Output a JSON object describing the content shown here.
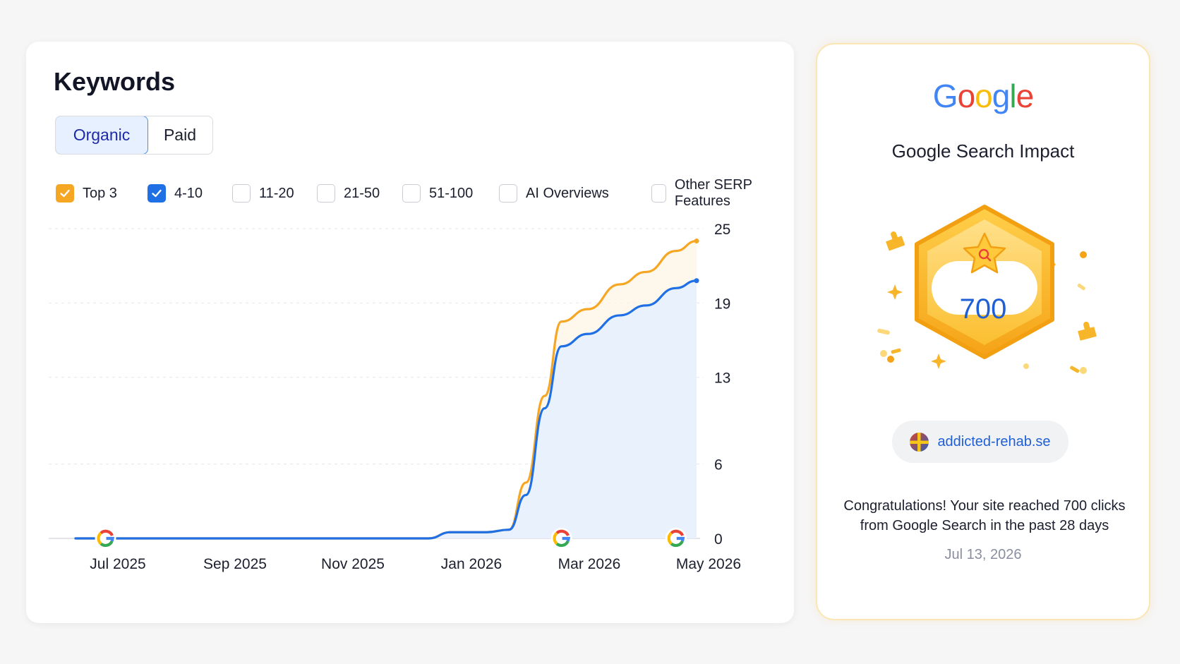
{
  "keywords": {
    "title": "Keywords",
    "tabs": [
      {
        "label": "Organic",
        "active": true
      },
      {
        "label": "Paid",
        "active": false
      }
    ],
    "filters": [
      {
        "label": "Top 3",
        "checked": true,
        "color": "#f5a623"
      },
      {
        "label": "4-10",
        "checked": true,
        "color": "#1f6fe5"
      },
      {
        "label": "11-20",
        "checked": false
      },
      {
        "label": "21-50",
        "checked": false
      },
      {
        "label": "51-100",
        "checked": false
      },
      {
        "label": "AI Overviews",
        "checked": false
      },
      {
        "label": "Other SERP Features",
        "checked": false
      }
    ]
  },
  "chart_data": {
    "type": "area",
    "title": "",
    "xlabel": "",
    "ylabel": "",
    "x_tick_labels": [
      "Jul 2025",
      "Sep 2025",
      "Nov 2025",
      "Jan 2026",
      "Mar 2026",
      "May 2026"
    ],
    "y_tick_labels": [
      "25",
      "19",
      "13",
      "6",
      "0"
    ],
    "y_ticks": [
      25,
      19,
      13,
      6,
      0
    ],
    "ylim": [
      0,
      25
    ],
    "y_axis_position": "right",
    "grid": "horizontal dashed",
    "x": [
      "2025-06-15",
      "2025-07-01",
      "2025-08-01",
      "2025-09-01",
      "2025-10-01",
      "2025-11-01",
      "2025-12-01",
      "2025-12-20",
      "2026-01-01",
      "2026-01-20",
      "2026-02-01",
      "2026-02-10",
      "2026-02-20",
      "2026-03-01",
      "2026-03-15",
      "2026-04-01",
      "2026-04-15",
      "2026-05-01",
      "2026-05-12"
    ],
    "series": [
      {
        "name": "Top 3",
        "color": "#f5a623",
        "values": [
          0,
          0,
          0,
          0,
          0,
          0,
          0,
          0,
          0.5,
          0.5,
          0.7,
          4.5,
          11.5,
          17.5,
          18.5,
          20.5,
          21.5,
          23.2,
          24.0
        ]
      },
      {
        "name": "4-10",
        "color": "#1f6fe5",
        "values": [
          0,
          0,
          0,
          0,
          0,
          0,
          0,
          0,
          0.5,
          0.5,
          0.7,
          3.5,
          10.5,
          15.5,
          16.5,
          18.0,
          18.8,
          20.2,
          20.8
        ]
      }
    ],
    "area_fill_series": "4-10",
    "annotation_markers": [
      {
        "x": "2025-07-01",
        "icon": "google-g-icon"
      },
      {
        "x": "2026-03-01",
        "icon": "google-g-icon"
      },
      {
        "x": "2026-05-01",
        "icon": "google-g-icon"
      }
    ]
  },
  "impact": {
    "logo_text": "Google",
    "logo_colors": [
      "#4285f4",
      "#ea4335",
      "#fbbc05",
      "#4285f4",
      "#34a853",
      "#ea4335"
    ],
    "title": "Google Search Impact",
    "value": "700",
    "badge_icon": "star-search-icon",
    "site": "addicted-rehab.se",
    "site_icon": "flag-icon",
    "message": "Congratulations! Your site reached 700 clicks from Google Search in the past 28 days",
    "date": "Jul 13, 2026"
  }
}
